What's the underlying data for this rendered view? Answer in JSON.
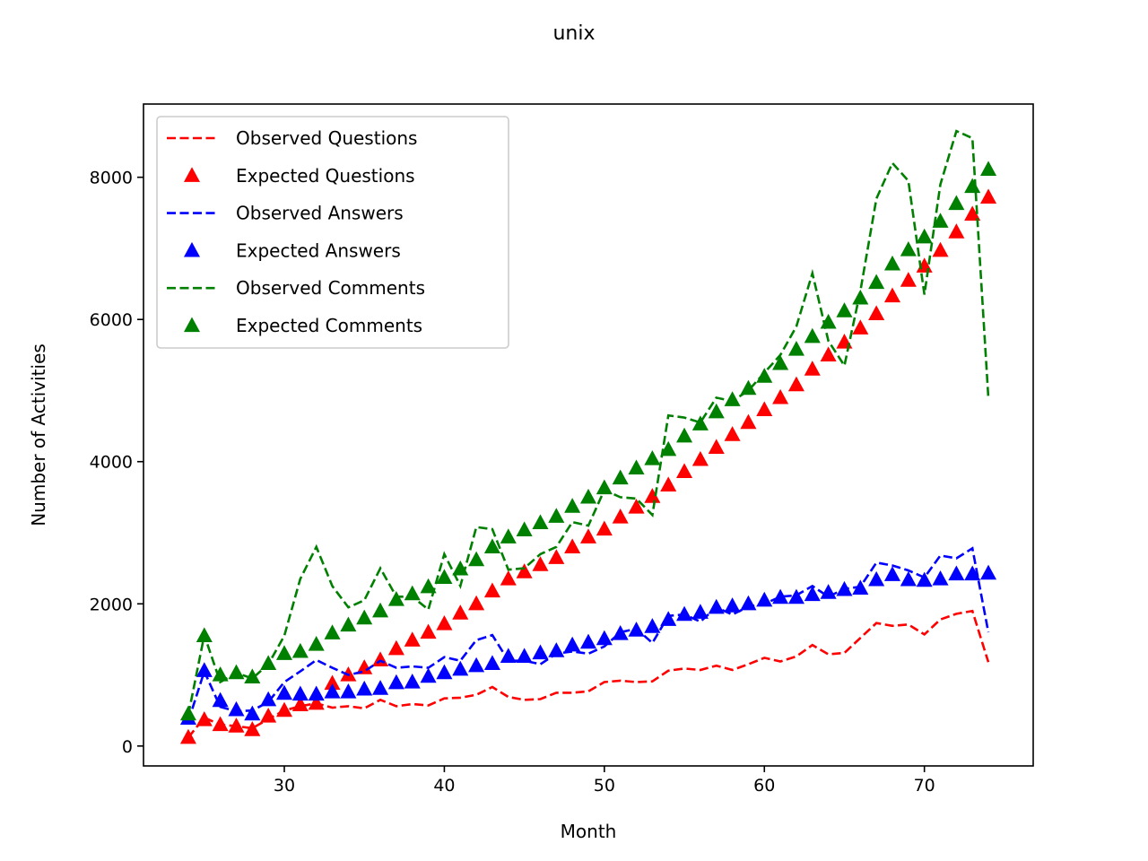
{
  "chart_data": {
    "type": "line",
    "title": "unix",
    "xlabel": "Month",
    "ylabel": "Number of Activities",
    "xlim": [
      21.2,
      76.8
    ],
    "ylim": [
      -280,
      9030
    ],
    "xticks": [
      30,
      40,
      50,
      60,
      70
    ],
    "yticks": [
      0,
      2000,
      4000,
      6000,
      8000
    ],
    "grid": false,
    "legend_position": "upper-left",
    "x": [
      24,
      25,
      26,
      27,
      28,
      29,
      30,
      31,
      32,
      33,
      34,
      35,
      36,
      37,
      38,
      39,
      40,
      41,
      42,
      43,
      44,
      45,
      46,
      47,
      48,
      49,
      50,
      51,
      52,
      53,
      54,
      55,
      56,
      57,
      58,
      59,
      60,
      61,
      62,
      63,
      64,
      65,
      66,
      67,
      68,
      69,
      70,
      71,
      72,
      73,
      74
    ],
    "series": [
      {
        "name": "Observed Questions",
        "style": "dashed",
        "color": "#ff0000",
        "values": [
          120,
          400,
          300,
          280,
          250,
          380,
          500,
          560,
          600,
          540,
          560,
          530,
          650,
          560,
          590,
          570,
          670,
          680,
          720,
          830,
          690,
          650,
          660,
          750,
          750,
          770,
          900,
          920,
          900,
          910,
          1060,
          1090,
          1070,
          1130,
          1070,
          1150,
          1240,
          1190,
          1260,
          1420,
          1290,
          1310,
          1520,
          1730,
          1690,
          1710,
          1570,
          1780,
          1860,
          1900,
          1180
        ]
      },
      {
        "name": "Expected Questions",
        "style": "triangle",
        "color": "#ff0000",
        "values": [
          120,
          370,
          300,
          280,
          230,
          420,
          500,
          580,
          600,
          880,
          1000,
          1100,
          1210,
          1370,
          1490,
          1600,
          1720,
          1870,
          2000,
          2180,
          2350,
          2450,
          2550,
          2650,
          2800,
          2940,
          3050,
          3220,
          3360,
          3510,
          3670,
          3860,
          4030,
          4200,
          4380,
          4550,
          4730,
          4900,
          5080,
          5300,
          5500,
          5680,
          5880,
          6080,
          6330,
          6550,
          6750,
          6970,
          7230,
          7480,
          7720
        ]
      },
      {
        "name": "Observed Answers",
        "style": "dashed",
        "color": "#0000ff",
        "values": [
          350,
          1050,
          550,
          490,
          500,
          620,
          900,
          1050,
          1210,
          1100,
          1000,
          1050,
          1200,
          1100,
          1120,
          1100,
          1250,
          1200,
          1490,
          1560,
          1200,
          1200,
          1150,
          1300,
          1330,
          1300,
          1400,
          1600,
          1650,
          1450,
          1830,
          1850,
          1750,
          1950,
          1850,
          1960,
          2000,
          2100,
          2120,
          2250,
          2100,
          2210,
          2240,
          2580,
          2540,
          2470,
          2370,
          2680,
          2640,
          2780,
          1600
        ]
      },
      {
        "name": "Expected Answers",
        "style": "triangle",
        "color": "#0000ff",
        "values": [
          390,
          1060,
          640,
          510,
          450,
          650,
          740,
          730,
          730,
          760,
          760,
          800,
          810,
          890,
          900,
          980,
          1030,
          1080,
          1130,
          1160,
          1260,
          1260,
          1310,
          1340,
          1420,
          1460,
          1510,
          1580,
          1630,
          1680,
          1780,
          1850,
          1880,
          1950,
          1970,
          2000,
          2050,
          2090,
          2090,
          2130,
          2160,
          2200,
          2220,
          2340,
          2410,
          2340,
          2330,
          2350,
          2420,
          2420,
          2430
        ]
      },
      {
        "name": "Observed Comments",
        "style": "dashed",
        "color": "#008000",
        "values": [
          440,
          1560,
          900,
          1030,
          950,
          1150,
          1550,
          2350,
          2800,
          2250,
          1950,
          2050,
          2500,
          2100,
          2100,
          1920,
          2700,
          2250,
          3080,
          3050,
          2480,
          2500,
          2700,
          2800,
          3150,
          3100,
          3600,
          3500,
          3480,
          3250,
          4650,
          4620,
          4550,
          4900,
          4850,
          5000,
          5250,
          5500,
          5900,
          6650,
          5700,
          5350,
          6400,
          7700,
          8200,
          7950,
          6350,
          7900,
          8650,
          8550,
          4900
        ]
      },
      {
        "name": "Expected Comments",
        "style": "triangle",
        "color": "#008000",
        "values": [
          450,
          1550,
          1000,
          1030,
          970,
          1160,
          1300,
          1330,
          1430,
          1590,
          1700,
          1800,
          1900,
          2060,
          2140,
          2240,
          2370,
          2490,
          2620,
          2800,
          2940,
          3040,
          3140,
          3230,
          3370,
          3500,
          3630,
          3770,
          3910,
          4040,
          4170,
          4360,
          4530,
          4700,
          4870,
          5030,
          5200,
          5380,
          5580,
          5760,
          5960,
          6120,
          6300,
          6520,
          6780,
          6980,
          7160,
          7380,
          7630,
          7870,
          8110
        ]
      }
    ]
  }
}
